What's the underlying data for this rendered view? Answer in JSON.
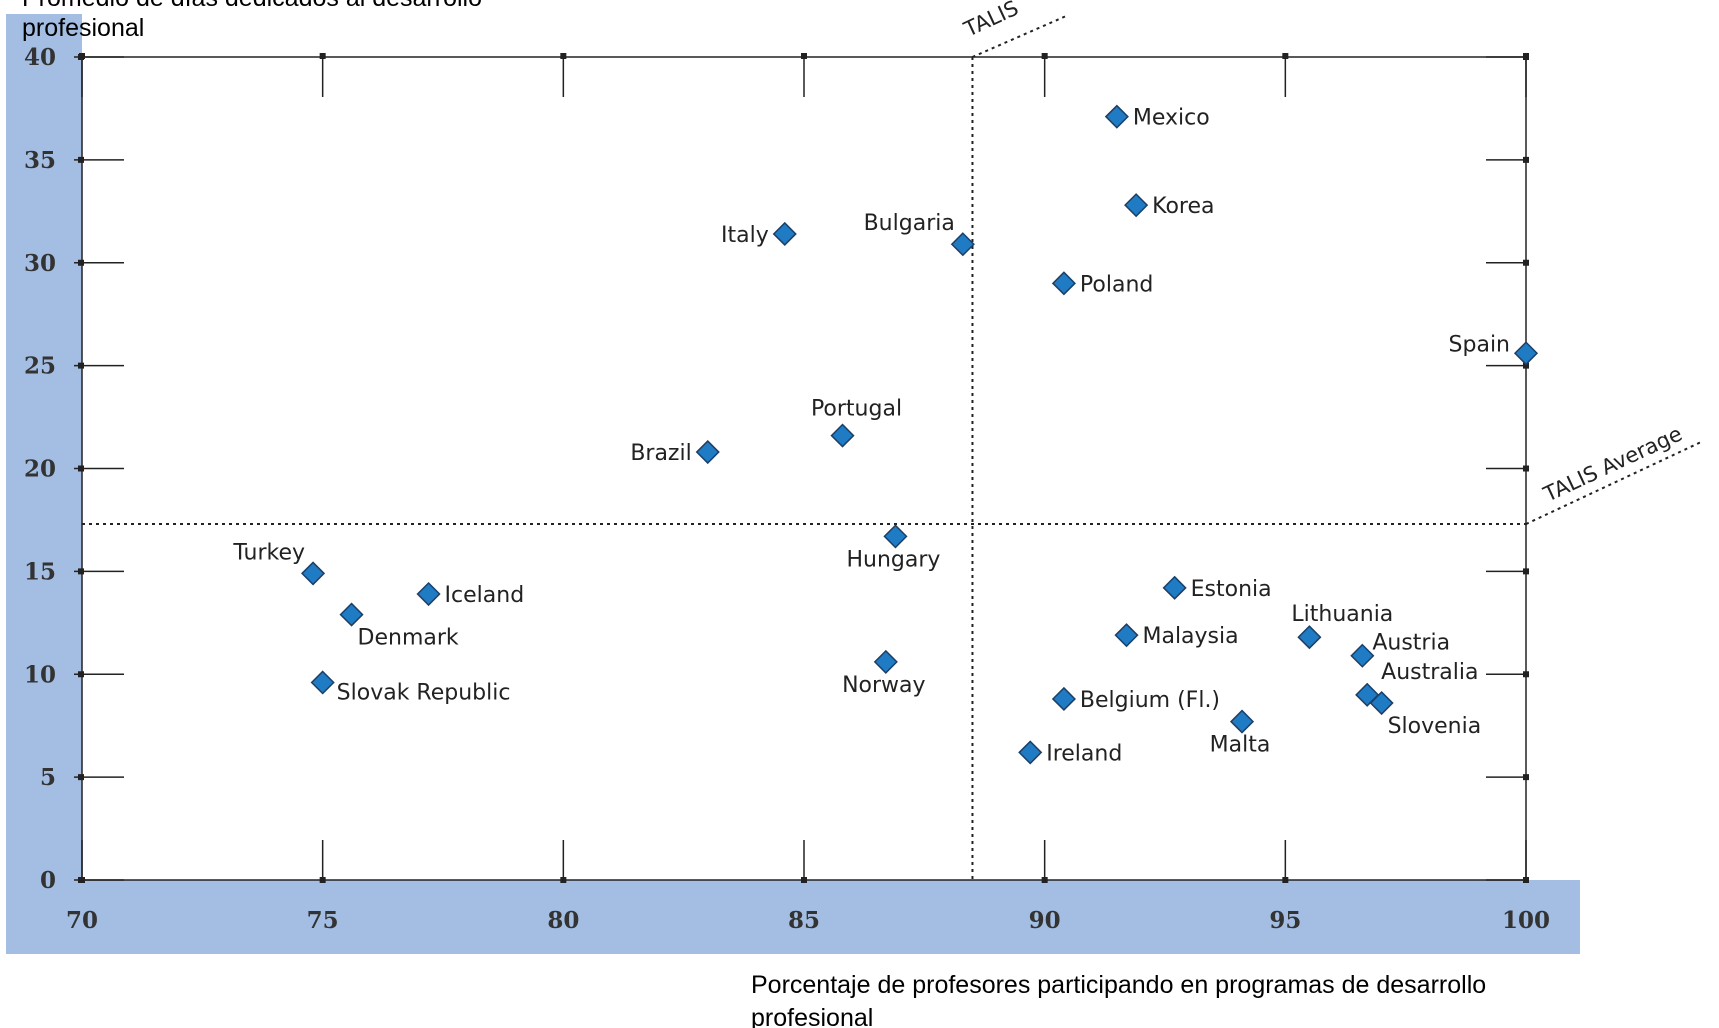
{
  "chart_data": {
    "type": "scatter",
    "ylabel": "Promedio de días dedicados al desarrollo profesional",
    "xlabel": "Porcentaje de profesores participando en programas de desarrollo profesional",
    "xlim": [
      70,
      100
    ],
    "ylim": [
      0,
      40
    ],
    "xticks": [
      70,
      75,
      80,
      85,
      90,
      95,
      100
    ],
    "yticks": [
      0,
      5,
      10,
      15,
      20,
      25,
      30,
      35,
      40
    ],
    "grid": false,
    "average_lines": {
      "x": 88.5,
      "y": 17.3,
      "label": "TALIS Average",
      "top_label": "TALIS"
    },
    "points": [
      {
        "label": "Mexico",
        "x": 91.5,
        "y": 37.1
      },
      {
        "label": "Korea",
        "x": 91.9,
        "y": 32.8
      },
      {
        "label": "Italy",
        "x": 84.6,
        "y": 31.4
      },
      {
        "label": "Bulgaria",
        "x": 88.3,
        "y": 30.9
      },
      {
        "label": "Poland",
        "x": 90.4,
        "y": 29.0
      },
      {
        "label": "Spain",
        "x": 100.0,
        "y": 25.6
      },
      {
        "label": "Portugal",
        "x": 85.8,
        "y": 21.6
      },
      {
        "label": "Brazil",
        "x": 83.0,
        "y": 20.8
      },
      {
        "label": "Hungary",
        "x": 86.9,
        "y": 16.7
      },
      {
        "label": "Turkey",
        "x": 74.8,
        "y": 14.9
      },
      {
        "label": "Iceland",
        "x": 77.2,
        "y": 13.9
      },
      {
        "label": "Denmark",
        "x": 75.6,
        "y": 12.9
      },
      {
        "label": "Estonia",
        "x": 92.7,
        "y": 14.2
      },
      {
        "label": "Malaysia",
        "x": 91.7,
        "y": 11.9
      },
      {
        "label": "Lithuania",
        "x": 95.5,
        "y": 11.8
      },
      {
        "label": "Austria",
        "x": 96.6,
        "y": 10.9
      },
      {
        "label": "Norway",
        "x": 86.7,
        "y": 10.6
      },
      {
        "label": "Slovak Republic",
        "x": 75.0,
        "y": 9.6
      },
      {
        "label": "Australia",
        "x": 96.7,
        "y": 9.0
      },
      {
        "label": "Belgium (Fl.)",
        "x": 90.4,
        "y": 8.8
      },
      {
        "label": "Slovenia",
        "x": 97.0,
        "y": 8.6
      },
      {
        "label": "Malta",
        "x": 94.1,
        "y": 7.7
      },
      {
        "label": "Ireland",
        "x": 89.7,
        "y": 6.2
      }
    ],
    "colors": {
      "marker_fill": "#1f7bc4",
      "marker_stroke": "#1d3f66",
      "band": "#a3bee2",
      "frame": "#222222"
    }
  }
}
